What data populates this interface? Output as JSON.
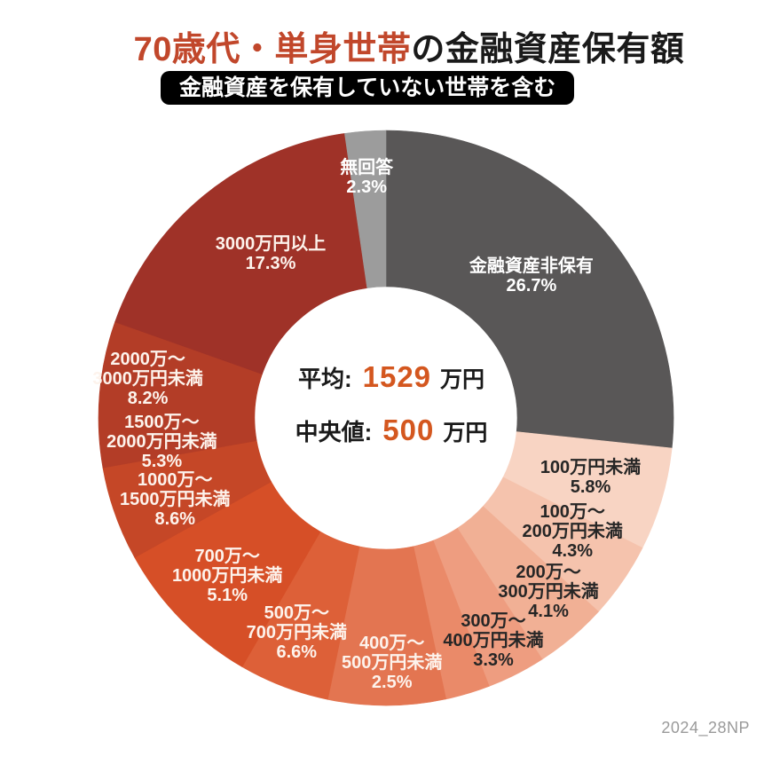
{
  "header": {
    "title_highlight": "70歳代・単身世帯",
    "title_rest": "の金融資産保有額",
    "badge": "金融資産を保有していない世帯を含む"
  },
  "center_panel": {
    "mean_label": "平均:",
    "mean_value": "1529",
    "mean_unit": "万円",
    "median_label": "中央値:",
    "median_value": "500",
    "median_unit": "万円"
  },
  "footer": {
    "watermark": "2024_28NP"
  },
  "colors": {
    "title_highlight": "#c1472b",
    "title_text": "#1a1a1a",
    "badge_bg": "#000000",
    "badge_text": "#ffffff",
    "value_accent": "#d4571f",
    "watermark": "#9a9a9a",
    "background": "#ffffff"
  },
  "chart_data": {
    "type": "pie",
    "subtype": "donut",
    "title": "70歳代・単身世帯の金融資産保有額",
    "subtitle": "金融資産を保有していない世帯を含む",
    "units": "%",
    "start_angle_deg": 0,
    "direction": "clockwise",
    "inner_radius_ratio": 0.457,
    "legend": false,
    "center_annotations": [
      {
        "label": "平均:",
        "value": 1529,
        "unit": "万円"
      },
      {
        "label": "中央値:",
        "value": 500,
        "unit": "万円"
      }
    ],
    "segments": [
      {
        "label": "金融資産非保有",
        "label_lines": [
          "金融資産非保有"
        ],
        "value": 26.7,
        "color": "#595757",
        "label_color": "#ffffff"
      },
      {
        "label": "100万円未満",
        "label_lines": [
          "100万円未満"
        ],
        "value": 5.8,
        "color": "#f8d4c3",
        "label_color": "#262626"
      },
      {
        "label": "100万～200万円未満",
        "label_lines": [
          "100万～",
          "200万円未満"
        ],
        "value": 4.3,
        "color": "#f5c3ad",
        "label_color": "#262626"
      },
      {
        "label": "200万～300万円未満",
        "label_lines": [
          "200万～",
          "300万円未満"
        ],
        "value": 4.1,
        "color": "#f1b095",
        "label_color": "#262626"
      },
      {
        "label": "300万～400万円未満",
        "label_lines": [
          "300万～",
          "400万円未満"
        ],
        "value": 3.3,
        "color": "#ee9d80",
        "label_color": "#262626"
      },
      {
        "label": "400万～500万円未満",
        "label_lines": [
          "400万～",
          "500万円未満"
        ],
        "value": 2.5,
        "color": "#ea8a69",
        "label_color": "#fdf3ec"
      },
      {
        "label": "500万～700万円未満",
        "label_lines": [
          "500万～",
          "700万円未満"
        ],
        "value": 6.6,
        "color": "#e37551",
        "label_color": "#fdf3ec"
      },
      {
        "label": "700万～1000万円未満",
        "label_lines": [
          "700万～",
          "1000万円未満"
        ],
        "value": 5.1,
        "color": "#dd6038",
        "label_color": "#fdf3ec"
      },
      {
        "label": "1000万～1500万円未満",
        "label_lines": [
          "1000万～",
          "1500万円未満"
        ],
        "value": 8.6,
        "color": "#d64f27",
        "label_color": "#fdf3ec"
      },
      {
        "label": "1500万～2000万円未満",
        "label_lines": [
          "1500万～",
          "2000万円未満"
        ],
        "value": 5.3,
        "color": "#c54727",
        "label_color": "#fdf3ec"
      },
      {
        "label": "2000万～3000万円未満",
        "label_lines": [
          "2000万～",
          "3000万円未満"
        ],
        "value": 8.2,
        "color": "#b33d27",
        "label_color": "#fdf3ec"
      },
      {
        "label": "3000万円以上",
        "label_lines": [
          "3000万円以上"
        ],
        "value": 17.3,
        "color": "#9f3228",
        "label_color": "#fdf3ec"
      },
      {
        "label": "無回答",
        "label_lines": [
          "無回答"
        ],
        "value": 2.3,
        "color": "#9c9c9c",
        "label_color": "#ffffff"
      }
    ]
  }
}
